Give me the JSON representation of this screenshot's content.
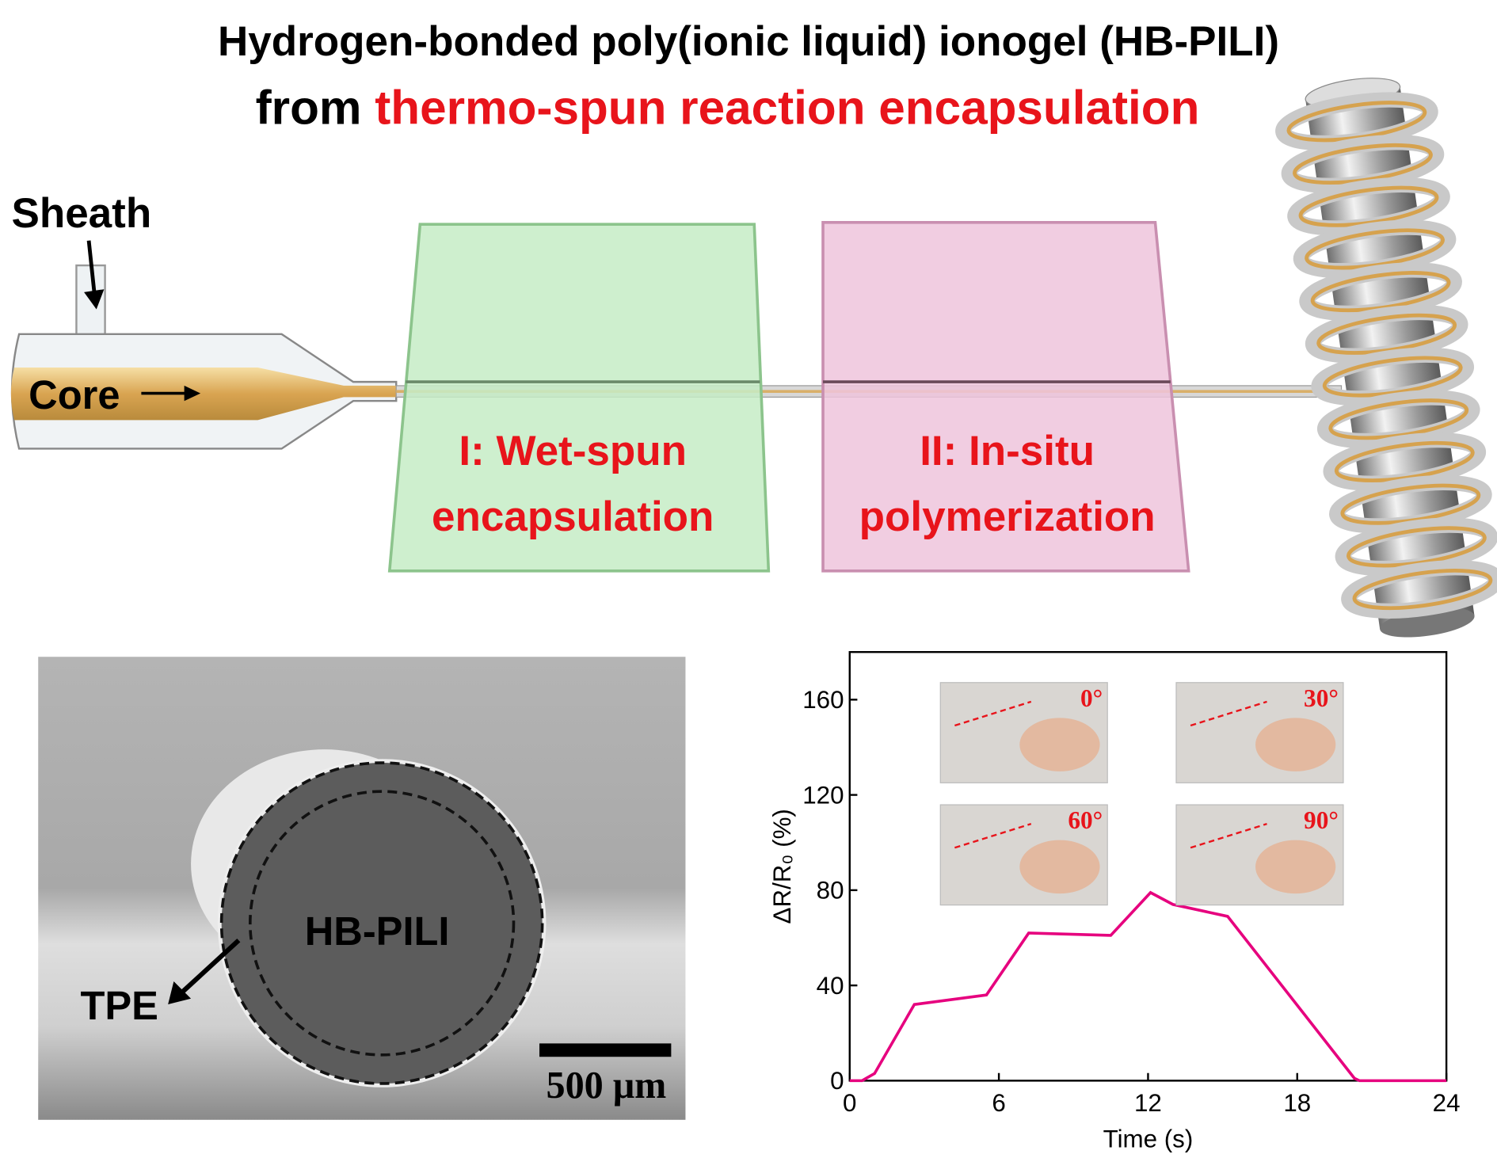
{
  "title_line1": "Hydrogen-bonded poly(ionic liquid) ionogel (HB-PILI)",
  "title_line2_prefix": "from ",
  "title_line2_highlight": "thermo-spun reaction encapsulation",
  "sheath_label": "Sheath",
  "core_label": "Core",
  "steps": [
    {
      "lines": [
        "I: Wet-spun",
        "encapsulation"
      ]
    },
    {
      "lines": [
        "II: In-situ",
        "polymerization"
      ]
    }
  ],
  "sem": {
    "core_label": "HB-PILI",
    "shell_label": "TPE",
    "scale_bar": "500 μm"
  },
  "photos": [
    "0°",
    "30°",
    "60°",
    "90°"
  ],
  "chart_data": {
    "type": "line",
    "x_label": "Time (s)",
    "y_label": "ΔR/R₀ (%)",
    "x": [
      0,
      0.5,
      1,
      2.6,
      5.5,
      7.2,
      10.5,
      12.1,
      13,
      15.2,
      20.3,
      20.5,
      24
    ],
    "series": [
      {
        "color": "#e6007e",
        "values": [
          0,
          0,
          3,
          32,
          36,
          62,
          61,
          79,
          74,
          69,
          1,
          0,
          0
        ]
      }
    ],
    "xlim": [
      0,
      24
    ],
    "ylim": [
      0,
      180
    ],
    "xticks": [
      0,
      6,
      12,
      18,
      24
    ],
    "yticks": [
      0,
      40,
      80,
      120,
      160
    ]
  }
}
